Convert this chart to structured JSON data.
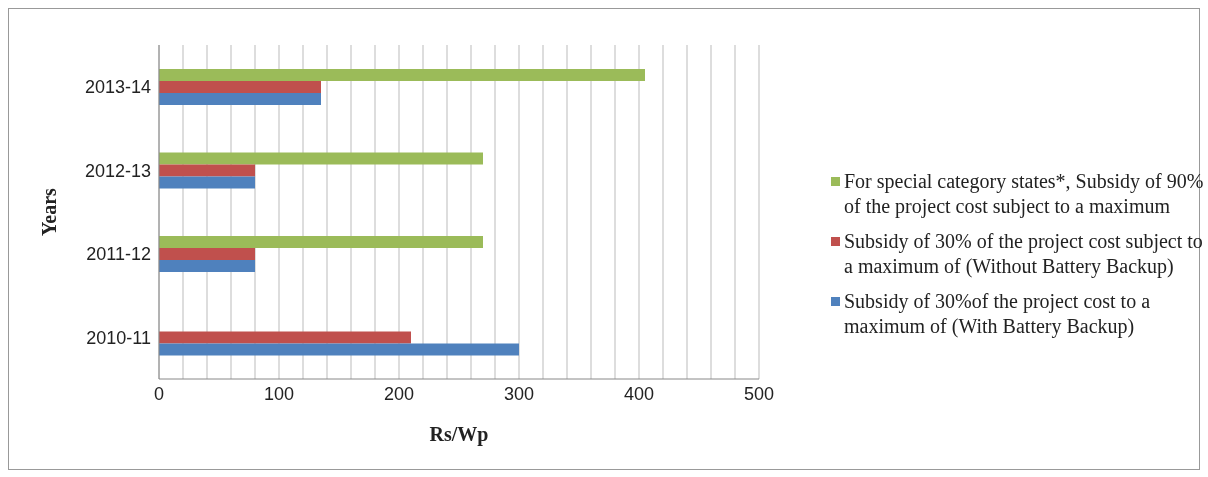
{
  "chart_data": {
    "type": "bar",
    "orientation": "horizontal",
    "xlabel": "Rs/Wp",
    "ylabel": "Years",
    "categories": [
      "2013-14",
      "2012-13",
      "2011-12",
      "2010-11"
    ],
    "series": [
      {
        "name": "For special category states*, Subsidy of 90% of the project cost subject to a maximum",
        "color": "#9bbb59",
        "values": [
          405,
          270,
          270,
          null
        ]
      },
      {
        "name": "Subsidy of 30% of the project cost subject to a maximum of (Without Battery Backup)",
        "color": "#c0504d",
        "values": [
          135,
          80,
          80,
          210
        ]
      },
      {
        "name": "Subsidy of 30%of the project cost to a maximum of (With Battery Backup)",
        "color": "#4f81bd",
        "values": [
          135,
          80,
          80,
          300
        ]
      }
    ],
    "xlim": [
      0,
      500
    ],
    "xticks": [
      0,
      {
        "value": 20,
        "label": null
      },
      {
        "value": 40,
        "label": null
      },
      {
        "value": 60,
        "label": null
      },
      {
        "value": 80,
        "label": null
      },
      100,
      {
        "value": 120,
        "label": null
      },
      {
        "value": 140,
        "label": null
      },
      {
        "value": 160,
        "label": null
      },
      {
        "value": 180,
        "label": null
      },
      200,
      {
        "value": 220,
        "label": null
      },
      {
        "value": 240,
        "label": null
      },
      {
        "value": 260,
        "label": null
      },
      {
        "value": 280,
        "label": null
      },
      300,
      {
        "value": 320,
        "label": null
      },
      {
        "value": 340,
        "label": null
      },
      {
        "value": 360,
        "label": null
      },
      {
        "value": 380,
        "label": null
      },
      400,
      {
        "value": 420,
        "label": null
      },
      {
        "value": 440,
        "label": null
      },
      {
        "value": 460,
        "label": null
      },
      {
        "value": 480,
        "label": null
      },
      500
    ],
    "grid": "x",
    "legend": "right"
  }
}
